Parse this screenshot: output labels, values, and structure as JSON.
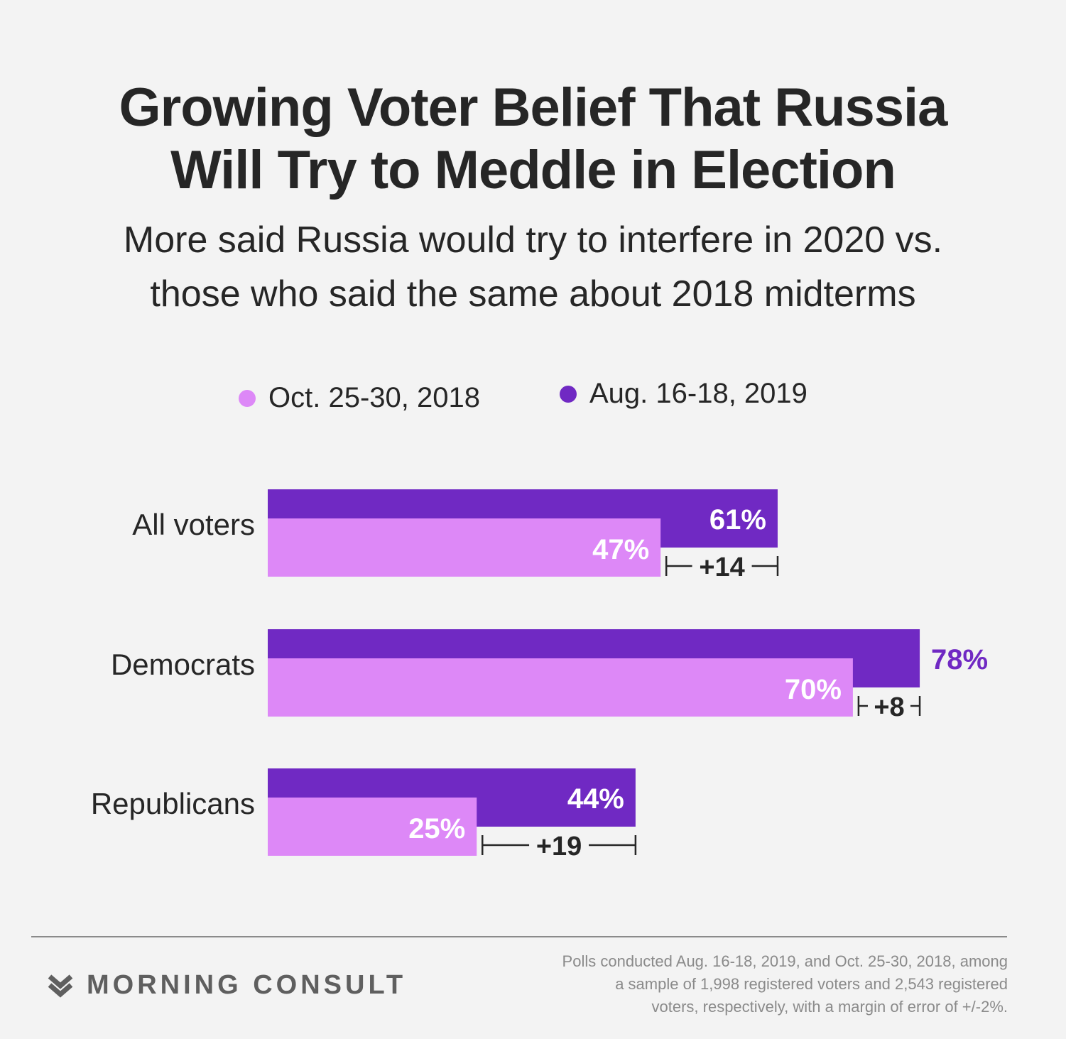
{
  "title_lines": [
    "Growing Voter Belief That Russia",
    "Will Try to Meddle in Election"
  ],
  "subtitle_lines": [
    "More said Russia would try to interfere in 2020 vs.",
    "those who said the same about 2018 midterms"
  ],
  "colors": {
    "series_2018": "#dd88f7",
    "series_2019": "#7029c3",
    "text": "#262626",
    "muted": "#8a8a8a"
  },
  "chart_data": {
    "type": "bar",
    "orientation": "horizontal",
    "categories": [
      "All voters",
      "Democrats",
      "Republicans"
    ],
    "series": [
      {
        "name": "Oct. 25-30, 2018",
        "values": [
          47,
          70,
          25
        ],
        "labels": [
          "47%",
          "70%",
          "25%"
        ]
      },
      {
        "name": "Aug. 16-18, 2019",
        "values": [
          61,
          78,
          44
        ],
        "labels": [
          "61%",
          "78%",
          "44%"
        ]
      }
    ],
    "differences": [
      "+14",
      "+8",
      "+19"
    ],
    "xlim": [
      0,
      78
    ],
    "legend_position": "top",
    "grid": false
  },
  "brand": {
    "name": "MORNING CONSULT",
    "logo_icon": "morning-consult-chevron-logo"
  },
  "footnote_lines": [
    "Polls conducted Aug. 16-18, 2019, and Oct. 25-30, 2018, among",
    "a sample of 1,998 registered voters and 2,543 registered",
    "voters, respectively, with a margin of error of +/-2%."
  ]
}
